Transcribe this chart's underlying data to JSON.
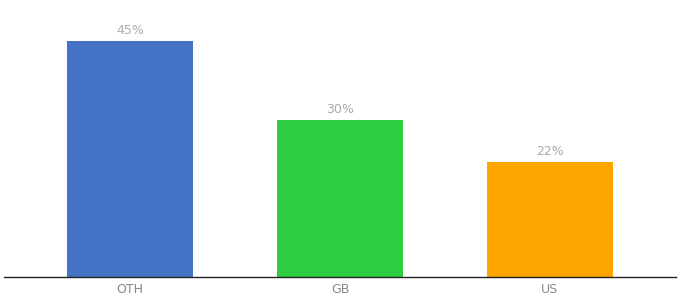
{
  "categories": [
    "OTH",
    "GB",
    "US"
  ],
  "values": [
    45,
    30,
    22
  ],
  "bar_colors": [
    "#4472C4",
    "#2ECC40",
    "#FFA500"
  ],
  "label_color": "#aaaaaa",
  "label_fontsize": 9,
  "tick_fontsize": 9,
  "tick_color": "#888888",
  "ylim": [
    0,
    52
  ],
  "bar_width": 0.6,
  "background_color": "#ffffff",
  "spine_color": "#222222",
  "xlim": [
    -0.6,
    2.6
  ]
}
